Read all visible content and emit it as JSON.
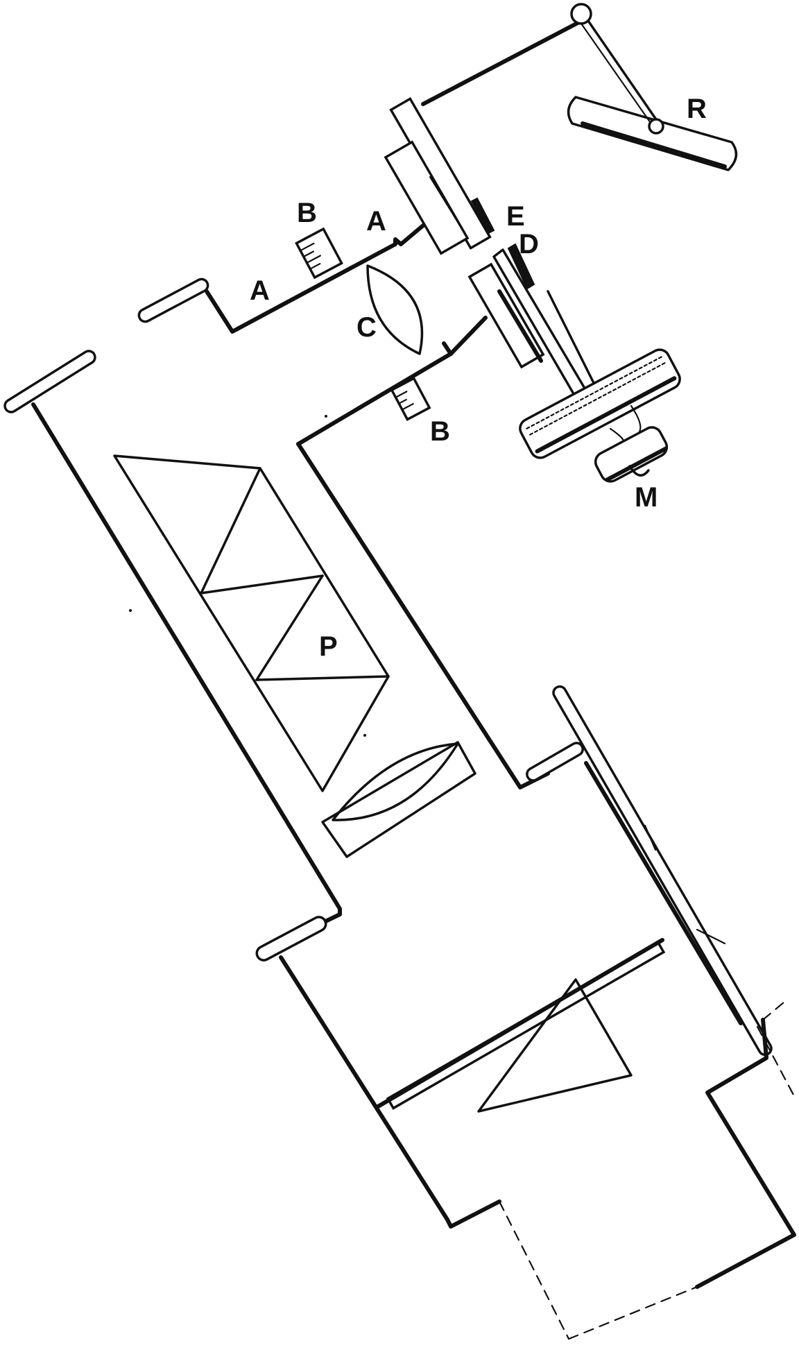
{
  "labels": {
    "A1": "A",
    "A2": "A",
    "B1": "B",
    "B2": "B",
    "C": "C",
    "D": "D",
    "E": "E",
    "M": "M",
    "P": "P",
    "R": "R"
  }
}
